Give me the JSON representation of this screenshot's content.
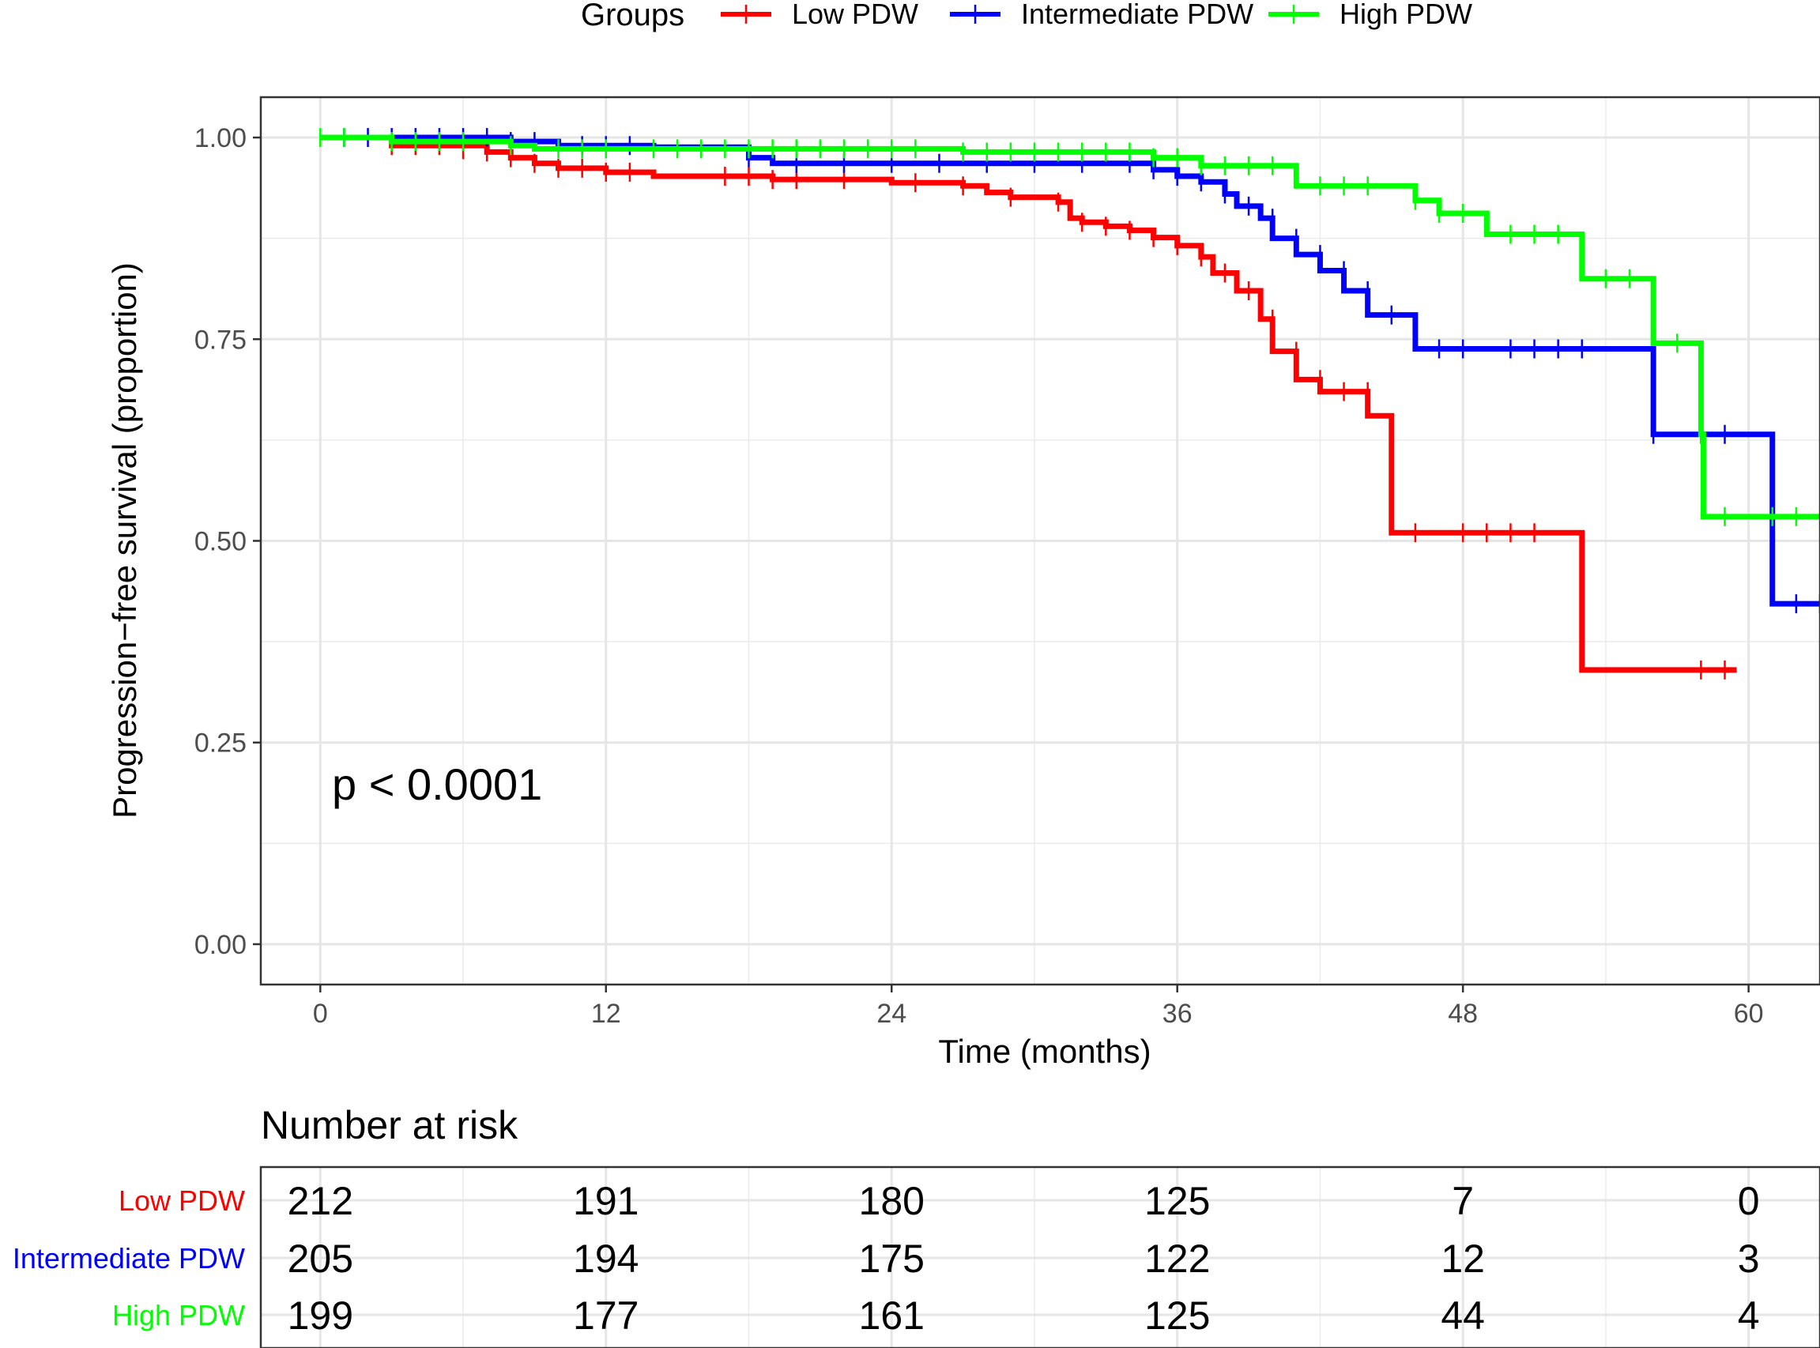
{
  "chart_data": {
    "type": "line",
    "subtype": "kaplan-meier",
    "legend": {
      "title": "Groups",
      "placement": "top",
      "entries": [
        {
          "name": "Low PDW",
          "color": "#ff0000"
        },
        {
          "name": "Intermediate PDW",
          "color": "#0000ff"
        },
        {
          "name": "High PDW",
          "color": "#00ff00"
        }
      ]
    },
    "xlabel": "Time (months)",
    "ylabel": "Progression−free survival (proportion)",
    "xlim": [
      -2.5,
      63
    ],
    "ylim": [
      -0.05,
      1.05
    ],
    "xticks": [
      0,
      12,
      24,
      36,
      48,
      60
    ],
    "yticks": [
      0,
      0.25,
      0.5,
      0.75,
      1
    ],
    "ytick_labels": [
      "0.00",
      "0.25",
      "0.50",
      "0.75",
      "1.00"
    ],
    "grid": true,
    "annotation": "p < 0.0001",
    "series": [
      {
        "name": "Low PDW",
        "color": "#ff0000",
        "steps": [
          [
            0,
            1.0
          ],
          [
            3,
            0.99
          ],
          [
            7,
            0.982
          ],
          [
            8,
            0.975
          ],
          [
            9,
            0.968
          ],
          [
            10,
            0.962
          ],
          [
            12,
            0.957
          ],
          [
            14,
            0.952
          ],
          [
            19,
            0.948
          ],
          [
            24,
            0.944
          ],
          [
            27,
            0.94
          ],
          [
            28,
            0.932
          ],
          [
            29,
            0.926
          ],
          [
            31,
            0.92
          ],
          [
            31.5,
            0.9
          ],
          [
            32,
            0.895
          ],
          [
            33,
            0.89
          ],
          [
            34,
            0.885
          ],
          [
            35,
            0.876
          ],
          [
            36,
            0.866
          ],
          [
            37,
            0.852
          ],
          [
            37.5,
            0.832
          ],
          [
            38.5,
            0.81
          ],
          [
            39.5,
            0.775
          ],
          [
            40,
            0.735
          ],
          [
            41,
            0.7
          ],
          [
            42,
            0.685
          ],
          [
            44,
            0.655
          ],
          [
            45,
            0.51
          ],
          [
            53,
            0.34
          ],
          [
            59.5,
            0.34
          ]
        ],
        "censor": [
          [
            3,
            0.99
          ],
          [
            4,
            0.99
          ],
          [
            5,
            0.99
          ],
          [
            6,
            0.985
          ],
          [
            7,
            0.982
          ],
          [
            8,
            0.975
          ],
          [
            9,
            0.968
          ],
          [
            10,
            0.962
          ],
          [
            11,
            0.962
          ],
          [
            12,
            0.957
          ],
          [
            13,
            0.957
          ],
          [
            17,
            0.952
          ],
          [
            18,
            0.952
          ],
          [
            19,
            0.948
          ],
          [
            20,
            0.948
          ],
          [
            22,
            0.948
          ],
          [
            25,
            0.944
          ],
          [
            27,
            0.94
          ],
          [
            29,
            0.926
          ],
          [
            31,
            0.92
          ],
          [
            32,
            0.895
          ],
          [
            33,
            0.89
          ],
          [
            34,
            0.885
          ],
          [
            35,
            0.876
          ],
          [
            36,
            0.866
          ],
          [
            37,
            0.852
          ],
          [
            38,
            0.832
          ],
          [
            39,
            0.81
          ],
          [
            40,
            0.775
          ],
          [
            41,
            0.735
          ],
          [
            42,
            0.7
          ],
          [
            43,
            0.685
          ],
          [
            44,
            0.685
          ],
          [
            46,
            0.51
          ],
          [
            48,
            0.51
          ],
          [
            49,
            0.51
          ],
          [
            50,
            0.51
          ],
          [
            51,
            0.51
          ],
          [
            58,
            0.34
          ],
          [
            59,
            0.34
          ]
        ]
      },
      {
        "name": "Intermediate PDW",
        "color": "#0000ff",
        "steps": [
          [
            0,
            1.0
          ],
          [
            8,
            0.995
          ],
          [
            10,
            0.99
          ],
          [
            14,
            0.988
          ],
          [
            18,
            0.975
          ],
          [
            19,
            0.968
          ],
          [
            35,
            0.96
          ],
          [
            36,
            0.952
          ],
          [
            37,
            0.945
          ],
          [
            38,
            0.93
          ],
          [
            38.5,
            0.915
          ],
          [
            39.5,
            0.9
          ],
          [
            40,
            0.875
          ],
          [
            41,
            0.855
          ],
          [
            42,
            0.835
          ],
          [
            43,
            0.81
          ],
          [
            44,
            0.78
          ],
          [
            46,
            0.738
          ],
          [
            56,
            0.632
          ],
          [
            61,
            0.422
          ],
          [
            63,
            0.422
          ]
        ],
        "censor": [
          [
            1,
            1.0
          ],
          [
            2,
            1.0
          ],
          [
            3,
            1.0
          ],
          [
            4,
            1.0
          ],
          [
            5,
            1.0
          ],
          [
            6,
            1.0
          ],
          [
            7,
            1.0
          ],
          [
            8,
            0.995
          ],
          [
            9,
            0.995
          ],
          [
            11,
            0.99
          ],
          [
            12,
            0.99
          ],
          [
            13,
            0.99
          ],
          [
            18,
            0.975
          ],
          [
            20,
            0.968
          ],
          [
            22,
            0.968
          ],
          [
            24,
            0.968
          ],
          [
            26,
            0.968
          ],
          [
            28,
            0.968
          ],
          [
            30,
            0.968
          ],
          [
            32,
            0.968
          ],
          [
            34,
            0.968
          ],
          [
            35,
            0.96
          ],
          [
            36,
            0.952
          ],
          [
            37,
            0.945
          ],
          [
            38,
            0.93
          ],
          [
            39,
            0.915
          ],
          [
            40,
            0.9
          ],
          [
            41,
            0.875
          ],
          [
            42,
            0.855
          ],
          [
            43,
            0.835
          ],
          [
            44,
            0.81
          ],
          [
            45,
            0.78
          ],
          [
            47,
            0.738
          ],
          [
            48,
            0.738
          ],
          [
            50,
            0.738
          ],
          [
            51,
            0.738
          ],
          [
            52,
            0.738
          ],
          [
            53,
            0.738
          ],
          [
            56,
            0.632
          ],
          [
            58,
            0.632
          ],
          [
            59,
            0.632
          ],
          [
            62,
            0.422
          ],
          [
            63,
            0.422
          ]
        ]
      },
      {
        "name": "High PDW",
        "color": "#00ff00",
        "steps": [
          [
            0,
            1.0
          ],
          [
            3,
            0.995
          ],
          [
            8,
            0.99
          ],
          [
            9,
            0.986
          ],
          [
            27,
            0.982
          ],
          [
            35,
            0.975
          ],
          [
            37,
            0.965
          ],
          [
            41,
            0.94
          ],
          [
            46,
            0.922
          ],
          [
            47,
            0.906
          ],
          [
            49,
            0.88
          ],
          [
            53,
            0.825
          ],
          [
            56,
            0.745
          ],
          [
            57,
            0.745
          ],
          [
            58,
            0.632
          ],
          [
            58.1,
            0.53
          ],
          [
            63,
            0.53
          ]
        ],
        "censor": [
          [
            0,
            1.0
          ],
          [
            1,
            1.0
          ],
          [
            3,
            0.995
          ],
          [
            4,
            0.995
          ],
          [
            5,
            0.995
          ],
          [
            6,
            0.995
          ],
          [
            8,
            0.99
          ],
          [
            10,
            0.986
          ],
          [
            11,
            0.986
          ],
          [
            12,
            0.986
          ],
          [
            14,
            0.986
          ],
          [
            15,
            0.986
          ],
          [
            16,
            0.986
          ],
          [
            17,
            0.986
          ],
          [
            18,
            0.986
          ],
          [
            19,
            0.986
          ],
          [
            20,
            0.986
          ],
          [
            21,
            0.986
          ],
          [
            22,
            0.986
          ],
          [
            23,
            0.986
          ],
          [
            24,
            0.986
          ],
          [
            25,
            0.986
          ],
          [
            27,
            0.982
          ],
          [
            28,
            0.982
          ],
          [
            29,
            0.982
          ],
          [
            30,
            0.982
          ],
          [
            31,
            0.982
          ],
          [
            32,
            0.982
          ],
          [
            33,
            0.982
          ],
          [
            34,
            0.982
          ],
          [
            35,
            0.975
          ],
          [
            36,
            0.975
          ],
          [
            37,
            0.965
          ],
          [
            38,
            0.965
          ],
          [
            39,
            0.965
          ],
          [
            40,
            0.965
          ],
          [
            42,
            0.94
          ],
          [
            43,
            0.94
          ],
          [
            44,
            0.94
          ],
          [
            46,
            0.922
          ],
          [
            47,
            0.906
          ],
          [
            48,
            0.906
          ],
          [
            50,
            0.88
          ],
          [
            51,
            0.88
          ],
          [
            52,
            0.88
          ],
          [
            54,
            0.825
          ],
          [
            55,
            0.825
          ],
          [
            57,
            0.745
          ],
          [
            58,
            0.632
          ],
          [
            59,
            0.53
          ],
          [
            61,
            0.53
          ],
          [
            62,
            0.53
          ]
        ]
      }
    ],
    "risk_table": {
      "title": "Number at risk",
      "times": [
        0,
        12,
        24,
        36,
        48,
        60
      ],
      "rows": [
        {
          "name": "Low PDW",
          "color": "#ff0000",
          "values": [
            "212",
            "191",
            "180",
            "125",
            "7",
            "0"
          ]
        },
        {
          "name": "Intermediate PDW",
          "color": "#0000ff",
          "values": [
            "205",
            "194",
            "175",
            "122",
            "12",
            "3"
          ]
        },
        {
          "name": "High PDW",
          "color": "#00ff00",
          "values": [
            "199",
            "177",
            "161",
            "125",
            "44",
            "4"
          ]
        }
      ]
    }
  }
}
